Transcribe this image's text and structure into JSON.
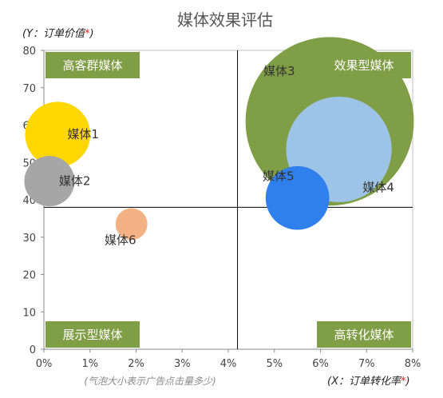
{
  "chart_data": {
    "type": "scatter",
    "title": "媒体效果评估",
    "ylabel_parts": [
      "(Y：订单价值",
      "*",
      ")"
    ],
    "xlabel_parts": [
      "(X：订单转化率",
      "*",
      ")"
    ],
    "caption": "(气泡大小表示广告点击量多少)",
    "xlim": [
      0,
      8
    ],
    "ylim": [
      0,
      80
    ],
    "x_ticks": [
      "0%",
      "1%",
      "2%",
      "3%",
      "4%",
      "5%",
      "6%",
      "7%",
      "8%"
    ],
    "y_ticks": [
      "0",
      "10",
      "20",
      "30",
      "40",
      "50",
      "60",
      "70",
      "80"
    ],
    "divider_x": 4.2,
    "divider_y": 38,
    "quadrants": [
      {
        "label": "高客群媒体",
        "position": "top-left"
      },
      {
        "label": "效果型媒体",
        "position": "top-right"
      },
      {
        "label": "展示型媒体",
        "position": "bottom-left"
      },
      {
        "label": "高转化媒体",
        "position": "bottom-right"
      }
    ],
    "series": [
      {
        "name": "媒体1",
        "x": 0.3,
        "y": 57.5,
        "size": 42,
        "color": "#FFD700",
        "label_side": "right"
      },
      {
        "name": "媒体2",
        "x": 0.12,
        "y": 45,
        "size": 25,
        "color": "#A6A6A6",
        "label_side": "right"
      },
      {
        "name": "媒体3",
        "x": 6.2,
        "y": 61,
        "size": 280,
        "color": "#7F9E46",
        "label_side": "upper-left"
      },
      {
        "name": "媒体4",
        "x": 6.4,
        "y": 53.5,
        "size": 110,
        "color": "#9DC3E6",
        "label_side": "lower-right"
      },
      {
        "name": "媒体5",
        "x": 5.5,
        "y": 40.5,
        "size": 40,
        "color": "#2F80ED",
        "label_side": "upper-left"
      },
      {
        "name": "媒体6",
        "x": 1.9,
        "y": 33.5,
        "size": 10,
        "color": "#F4B183",
        "label_side": "below"
      }
    ],
    "colors": {
      "quadrant_label_bg": "#7F9E46",
      "divider": "#000000",
      "axis": "#888888"
    }
  }
}
